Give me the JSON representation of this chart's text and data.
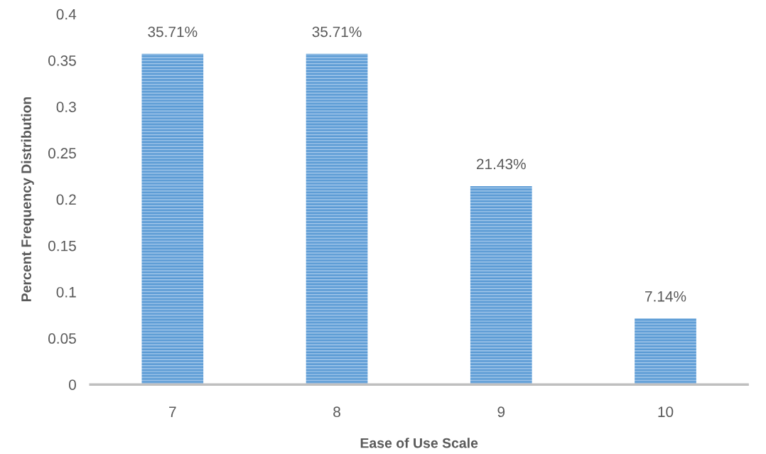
{
  "chart_data": {
    "type": "bar",
    "xlabel": "Ease of Use Scale",
    "ylabel": "Percent Frequency Distribution",
    "categories": [
      "7",
      "8",
      "9",
      "10"
    ],
    "values": [
      0.3571,
      0.3571,
      0.2143,
      0.0714
    ],
    "value_labels": [
      "35.71%",
      "35.71%",
      "21.43%",
      "7.14%"
    ],
    "color": "#5b9bd5",
    "ylim": [
      0,
      0.4
    ],
    "yticks": [
      {
        "value": 0,
        "label": "0"
      },
      0.05,
      0.1,
      0.15,
      0.2,
      0.25,
      0.3,
      0.35,
      0.4
    ],
    "grid": false,
    "legend": false
  }
}
